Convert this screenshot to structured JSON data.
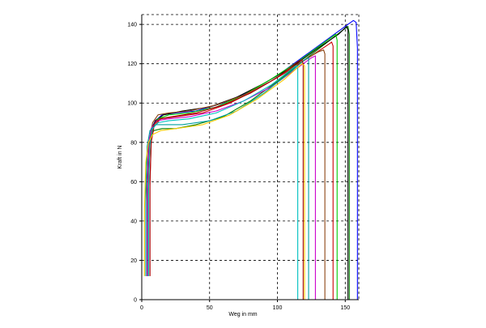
{
  "chart_data": {
    "type": "line",
    "xlabel": "Weg in mm",
    "ylabel": "Kraft in N",
    "xlim": [
      0,
      160
    ],
    "ylim": [
      0,
      145
    ],
    "x_ticks": [
      0,
      50,
      100,
      150
    ],
    "y_ticks": [
      0,
      20,
      40,
      60,
      80,
      100,
      120,
      140
    ],
    "grid": true,
    "grid_style": "dashed",
    "series": [
      {
        "color": "#0000ff",
        "values": [
          [
            4,
            12
          ],
          [
            4,
            55
          ],
          [
            5,
            78
          ],
          [
            7,
            87
          ],
          [
            10,
            91
          ],
          [
            15,
            94
          ],
          [
            25,
            95
          ],
          [
            40,
            96
          ],
          [
            60,
            100
          ],
          [
            80,
            106
          ],
          [
            100,
            114
          ],
          [
            120,
            124
          ],
          [
            140,
            134
          ],
          [
            152,
            140
          ],
          [
            156,
            142
          ],
          [
            158,
            141
          ],
          [
            159,
            128
          ],
          [
            159,
            0
          ]
        ]
      },
      {
        "color": "#008000",
        "values": [
          [
            3,
            12
          ],
          [
            3,
            50
          ],
          [
            4,
            75
          ],
          [
            6,
            83
          ],
          [
            9,
            86
          ],
          [
            15,
            87
          ],
          [
            25,
            87
          ],
          [
            40,
            89
          ],
          [
            60,
            93
          ],
          [
            80,
            101
          ],
          [
            100,
            111
          ],
          [
            120,
            122
          ],
          [
            135,
            130
          ],
          [
            148,
            137
          ],
          [
            152,
            139
          ],
          [
            153,
            135
          ],
          [
            153,
            0
          ]
        ]
      },
      {
        "color": "#000000",
        "values": [
          [
            4,
            12
          ],
          [
            4,
            52
          ],
          [
            5,
            76
          ],
          [
            7,
            86
          ],
          [
            10,
            91
          ],
          [
            16,
            94
          ],
          [
            30,
            96
          ],
          [
            50,
            98
          ],
          [
            70,
            103
          ],
          [
            90,
            110
          ],
          [
            110,
            118
          ],
          [
            130,
            128
          ],
          [
            145,
            135
          ],
          [
            151,
            139
          ],
          [
            152,
            137
          ],
          [
            152,
            0
          ]
        ]
      },
      {
        "color": "#00cc00",
        "values": [
          [
            5,
            12
          ],
          [
            5,
            60
          ],
          [
            6,
            80
          ],
          [
            8,
            88
          ],
          [
            12,
            92
          ],
          [
            20,
            94
          ],
          [
            35,
            95
          ],
          [
            55,
            98
          ],
          [
            75,
            104
          ],
          [
            95,
            112
          ],
          [
            115,
            121
          ],
          [
            135,
            131
          ],
          [
            143,
            135
          ],
          [
            144,
            132
          ],
          [
            144,
            0
          ]
        ]
      },
      {
        "color": "#cc0000",
        "values": [
          [
            6,
            12
          ],
          [
            6,
            58
          ],
          [
            7,
            80
          ],
          [
            9,
            88
          ],
          [
            14,
            92
          ],
          [
            25,
            93
          ],
          [
            45,
            95
          ],
          [
            65,
            100
          ],
          [
            85,
            107
          ],
          [
            105,
            115
          ],
          [
            125,
            124
          ],
          [
            138,
            130
          ],
          [
            140,
            131
          ],
          [
            141,
            129
          ],
          [
            141,
            0
          ]
        ]
      },
      {
        "color": "#8b4513",
        "values": [
          [
            5,
            12
          ],
          [
            5,
            62
          ],
          [
            6,
            82
          ],
          [
            8,
            90
          ],
          [
            12,
            94
          ],
          [
            20,
            95
          ],
          [
            35,
            96
          ],
          [
            55,
            99
          ],
          [
            75,
            104
          ],
          [
            95,
            111
          ],
          [
            115,
            120
          ],
          [
            130,
            126
          ],
          [
            134,
            127
          ],
          [
            135,
            125
          ],
          [
            135,
            0
          ]
        ]
      },
      {
        "color": "#cc00cc",
        "values": [
          [
            4,
            12
          ],
          [
            4,
            56
          ],
          [
            5,
            79
          ],
          [
            7,
            87
          ],
          [
            11,
            91
          ],
          [
            20,
            92
          ],
          [
            35,
            93
          ],
          [
            55,
            96
          ],
          [
            75,
            101
          ],
          [
            95,
            108
          ],
          [
            115,
            118
          ],
          [
            125,
            123
          ],
          [
            128,
            124
          ],
          [
            128,
            0
          ]
        ]
      },
      {
        "color": "#00a0a0",
        "values": [
          [
            3,
            12
          ],
          [
            3,
            55
          ],
          [
            4,
            78
          ],
          [
            6,
            86
          ],
          [
            10,
            89
          ],
          [
            18,
            89
          ],
          [
            30,
            89
          ],
          [
            50,
            91
          ],
          [
            70,
            96
          ],
          [
            90,
            105
          ],
          [
            110,
            116
          ],
          [
            120,
            122
          ],
          [
            123,
            123
          ],
          [
            123,
            0
          ]
        ]
      },
      {
        "color": "#a00000",
        "values": [
          [
            6,
            12
          ],
          [
            6,
            60
          ],
          [
            7,
            82
          ],
          [
            9,
            89
          ],
          [
            13,
            92
          ],
          [
            22,
            93
          ],
          [
            40,
            95
          ],
          [
            60,
            99
          ],
          [
            80,
            105
          ],
          [
            100,
            113
          ],
          [
            115,
            121
          ],
          [
            118,
            122
          ],
          [
            119,
            120
          ],
          [
            119,
            0
          ]
        ]
      },
      {
        "color": "#00c0c0",
        "values": [
          [
            5,
            12
          ],
          [
            5,
            57
          ],
          [
            6,
            79
          ],
          [
            8,
            87
          ],
          [
            12,
            90
          ],
          [
            20,
            91
          ],
          [
            35,
            92
          ],
          [
            55,
            95
          ],
          [
            75,
            101
          ],
          [
            95,
            109
          ],
          [
            110,
            117
          ],
          [
            114,
            119
          ],
          [
            115,
            118
          ],
          [
            115,
            0
          ]
        ]
      },
      {
        "color": "#ffcc00",
        "values": [
          [
            2,
            12
          ],
          [
            2,
            45
          ],
          [
            3,
            70
          ],
          [
            5,
            80
          ],
          [
            8,
            84
          ],
          [
            14,
            86
          ],
          [
            25,
            87
          ],
          [
            45,
            89
          ],
          [
            65,
            94
          ],
          [
            85,
            102
          ],
          [
            105,
            112
          ],
          [
            118,
            120
          ],
          [
            120,
            119
          ],
          [
            120,
            0
          ]
        ]
      }
    ]
  }
}
